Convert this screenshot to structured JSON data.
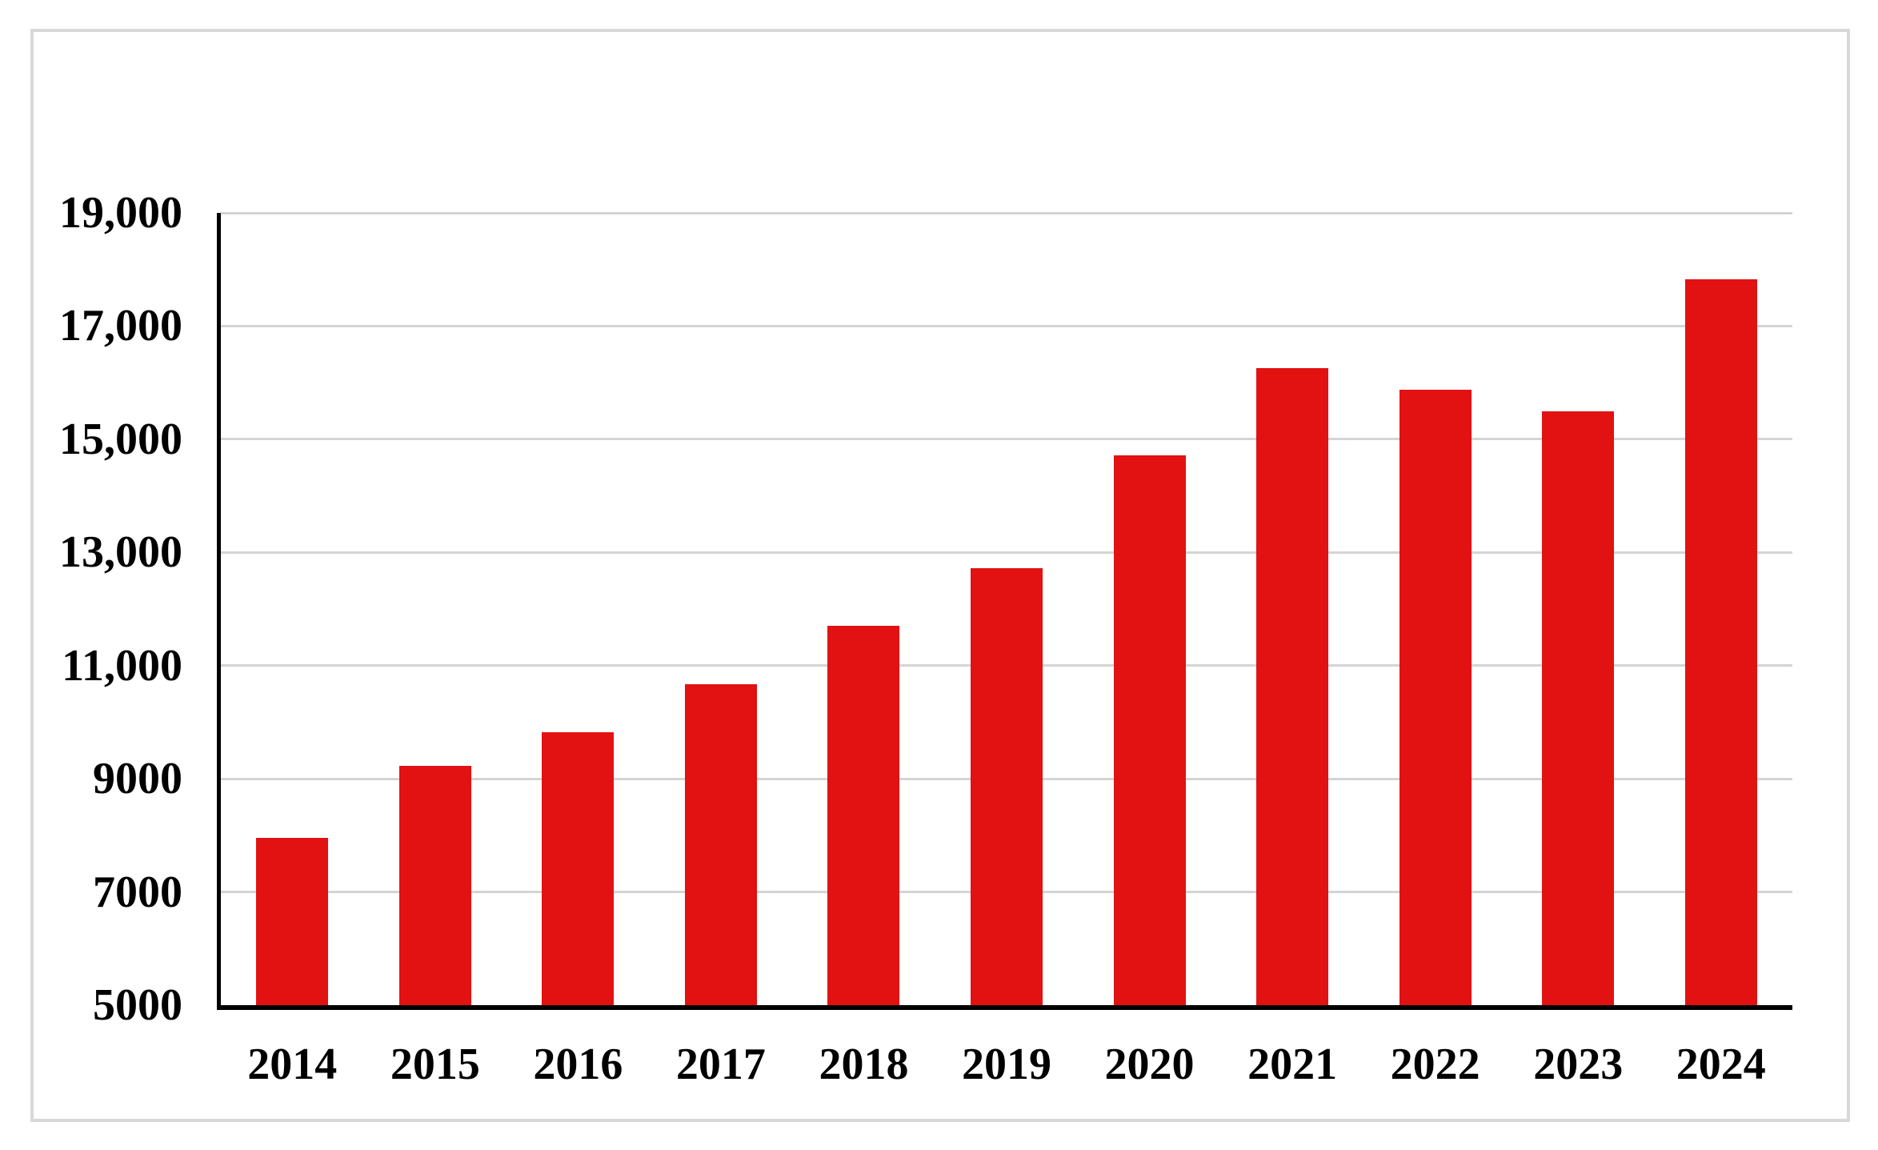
{
  "figure": {
    "background_color": "#ffffff",
    "card_border_color": "#d8d8d8",
    "title": ""
  },
  "chart_data": {
    "type": "bar",
    "title": "",
    "xlabel": "",
    "ylabel": "",
    "categories": [
      "2014",
      "2015",
      "2016",
      "2017",
      "2018",
      "2019",
      "2020",
      "2021",
      "2022",
      "2023",
      "2024"
    ],
    "values": [
      7950,
      9230,
      9820,
      10670,
      11700,
      12720,
      14710,
      16250,
      15880,
      15500,
      17820
    ],
    "ylim": [
      5000,
      19000
    ],
    "ytick_interval": 2000,
    "yticks": [
      {
        "value": 5000,
        "label": "5000"
      },
      {
        "value": 7000,
        "label": "7000"
      },
      {
        "value": 9000,
        "label": "9000"
      },
      {
        "value": 11000,
        "label": "11,000"
      },
      {
        "value": 13000,
        "label": "13,000"
      },
      {
        "value": 15000,
        "label": "15,000"
      },
      {
        "value": 17000,
        "label": "17,000"
      },
      {
        "value": 19000,
        "label": "19,000"
      }
    ],
    "bar_color": "#e21112",
    "axis_color": "#000000",
    "gridline_color": "#d4d4d4",
    "grid": true,
    "legend": false,
    "legend_position": "none"
  }
}
